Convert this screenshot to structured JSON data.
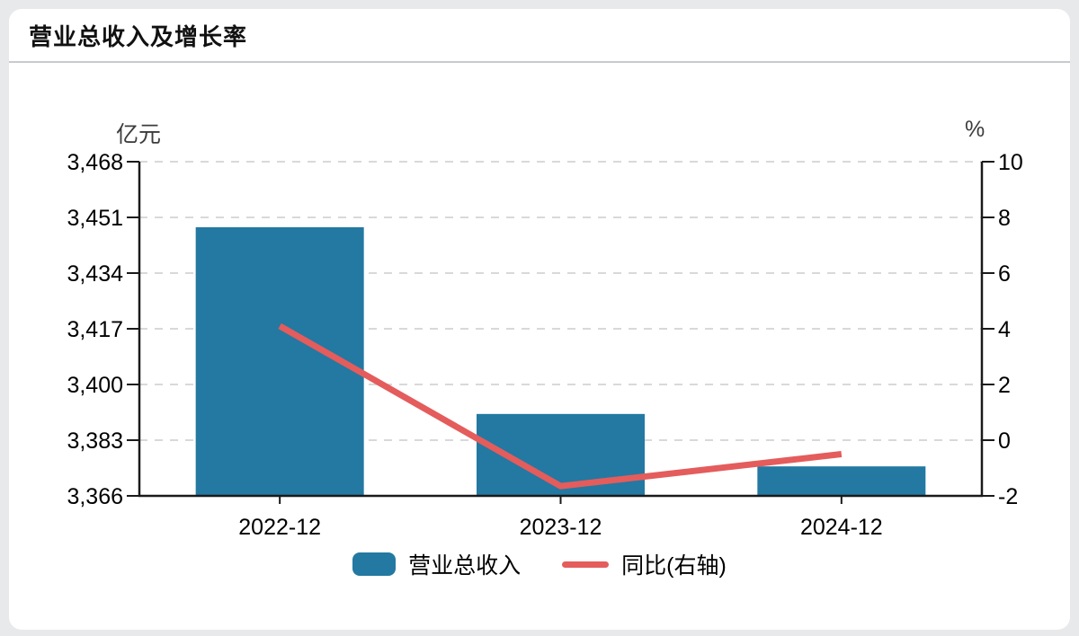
{
  "page": {
    "title": "营业总收入及增长率"
  },
  "chart_data": {
    "type": "bar+line",
    "title": "营业总收入及增长率",
    "categories": [
      "2022-12",
      "2023-12",
      "2024-12"
    ],
    "series": [
      {
        "name": "营业总收入",
        "type": "bar",
        "axis": "left",
        "color": "#2379a2",
        "values": [
          3448,
          3391,
          3375
        ]
      },
      {
        "name": "同比(右轴)",
        "type": "line",
        "axis": "right",
        "color": "#e45c5c",
        "values": [
          4.1,
          -1.65,
          -0.5
        ]
      }
    ],
    "left_axis": {
      "unit": "亿元",
      "min": 3366,
      "max": 3468,
      "ticks": [
        {
          "v": 3366,
          "label": "3,366"
        },
        {
          "v": 3383,
          "label": "3,383"
        },
        {
          "v": 3400,
          "label": "3,400"
        },
        {
          "v": 3417,
          "label": "3,417"
        },
        {
          "v": 3434,
          "label": "3,434"
        },
        {
          "v": 3451,
          "label": "3,451"
        },
        {
          "v": 3468,
          "label": "3,468"
        }
      ]
    },
    "right_axis": {
      "unit": "%",
      "min": -2,
      "max": 10,
      "ticks": [
        {
          "v": -2,
          "label": "-2"
        },
        {
          "v": 0,
          "label": "0"
        },
        {
          "v": 2,
          "label": "2"
        },
        {
          "v": 4,
          "label": "4"
        },
        {
          "v": 6,
          "label": "6"
        },
        {
          "v": 8,
          "label": "8"
        },
        {
          "v": 10,
          "label": "10"
        }
      ]
    },
    "grid": "horizontal-dashed",
    "legend_position": "bottom",
    "colors": {
      "bar": "#2379a2",
      "line": "#e45c5c",
      "axis": "#1a1a1a",
      "gridline": "#d9d9d9"
    }
  }
}
